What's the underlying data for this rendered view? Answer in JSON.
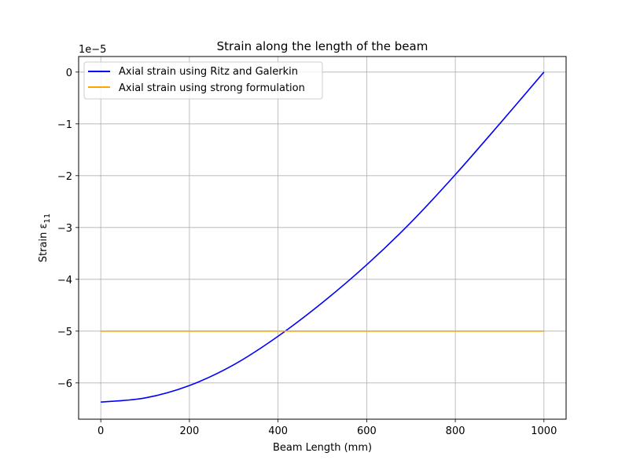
{
  "chart_data": {
    "type": "line",
    "title": "Strain along the length of the beam",
    "xlabel": "Beam Length (mm)",
    "ylabel_main": "Strain ε",
    "ylabel_sub": "11",
    "offset_text": "1e−5",
    "xlim": [
      -50,
      1050
    ],
    "ylim": [
      -6.7,
      0.3
    ],
    "xticks": [
      0,
      200,
      400,
      600,
      800,
      1000
    ],
    "xtick_labels": [
      "0",
      "200",
      "400",
      "600",
      "800",
      "1000"
    ],
    "yticks": [
      -6,
      -5,
      -4,
      -3,
      -2,
      -1,
      0
    ],
    "ytick_labels": [
      "−6",
      "−5",
      "−4",
      "−3",
      "−2",
      "−1",
      "0"
    ],
    "grid": true,
    "legend_placement": "upper-left",
    "y_scale_note": "values in units of 1e-5",
    "series": [
      {
        "name": "Axial strain using Ritz and Galerkin",
        "color": "#0000ff",
        "x": [
          0,
          100,
          200,
          300,
          400,
          500,
          600,
          700,
          800,
          900,
          1000
        ],
        "y": [
          -6.37,
          -6.29,
          -6.05,
          -5.65,
          -5.1,
          -4.45,
          -3.72,
          -2.9,
          -1.98,
          -1.0,
          0.0
        ]
      },
      {
        "name": "Axial strain using strong formulation",
        "color": "#ffa500",
        "x": [
          0,
          1000
        ],
        "y": [
          -5.0,
          -5.0
        ]
      }
    ]
  }
}
